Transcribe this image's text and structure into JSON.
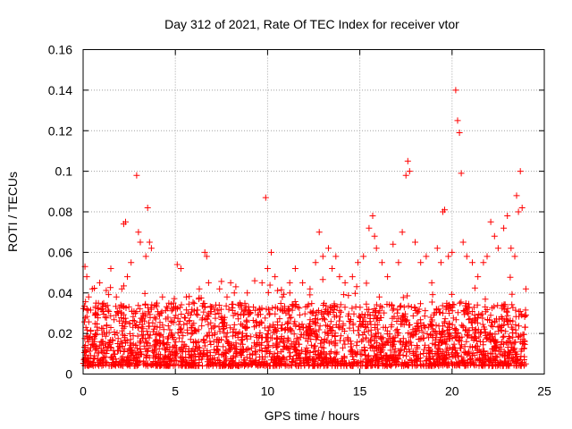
{
  "chart_data": {
    "type": "scatter",
    "title": "Day 312 of 2021, Rate Of TEC Index for receiver vtor",
    "xlabel": "GPS time / hours",
    "ylabel": "ROTI / TECUs",
    "xlim": [
      0,
      25
    ],
    "ylim": [
      0,
      0.16
    ],
    "x_ticks": [
      0,
      5,
      10,
      15,
      20,
      25
    ],
    "x_tick_labels": [
      "0",
      "5",
      "10",
      "15",
      "20",
      "25"
    ],
    "y_ticks": [
      0,
      0.02,
      0.04,
      0.06,
      0.08,
      0.1,
      0.12,
      0.14,
      0.16
    ],
    "y_tick_labels": [
      "0",
      "0.02",
      "0.04",
      "0.06",
      "0.08",
      "0.1",
      "0.12",
      "0.14",
      "0.16"
    ],
    "grid": true,
    "marker": "+",
    "color": "#ff0000",
    "series": [
      {
        "name": "ROTI",
        "x": [
          0.1,
          0.2,
          0.3,
          0.5,
          0.7,
          0.9,
          1.2,
          1.5,
          1.8,
          2.1,
          2.2,
          2.3,
          2.4,
          2.6,
          2.9,
          3.0,
          3.1,
          3.4,
          3.5,
          3.6,
          3.7,
          4.0,
          4.3,
          4.6,
          4.9,
          5.1,
          5.3,
          5.6,
          6.0,
          6.3,
          6.6,
          6.7,
          6.8,
          7.1,
          7.4,
          7.8,
          8.0,
          8.2,
          8.5,
          8.9,
          9.3,
          9.7,
          9.9,
          10.0,
          10.2,
          10.4,
          10.8,
          11.2,
          11.5,
          11.9,
          12.3,
          12.6,
          12.8,
          13.0,
          13.3,
          13.5,
          13.7,
          13.9,
          14.2,
          14.6,
          14.9,
          15.2,
          15.5,
          15.7,
          15.8,
          15.9,
          16.2,
          16.5,
          16.8,
          17.1,
          17.3,
          17.5,
          17.6,
          17.7,
          18.0,
          18.3,
          18.6,
          18.9,
          19.2,
          19.4,
          19.5,
          19.6,
          19.8,
          20.0,
          20.2,
          20.3,
          20.4,
          20.5,
          20.6,
          20.8,
          21.1,
          21.4,
          21.7,
          21.9,
          22.1,
          22.3,
          22.5,
          22.8,
          23.0,
          23.2,
          23.4,
          23.5,
          23.6,
          23.7,
          23.8,
          24.0
        ],
        "y": [
          0.053,
          0.048,
          0.038,
          0.042,
          0.035,
          0.045,
          0.028,
          0.052,
          0.038,
          0.042,
          0.074,
          0.075,
          0.048,
          0.055,
          0.098,
          0.07,
          0.065,
          0.058,
          0.082,
          0.065,
          0.062,
          0.035,
          0.038,
          0.028,
          0.035,
          0.054,
          0.052,
          0.038,
          0.025,
          0.042,
          0.06,
          0.058,
          0.045,
          0.032,
          0.042,
          0.038,
          0.045,
          0.04,
          0.035,
          0.04,
          0.046,
          0.045,
          0.087,
          0.052,
          0.06,
          0.048,
          0.038,
          0.045,
          0.052,
          0.045,
          0.042,
          0.055,
          0.07,
          0.058,
          0.062,
          0.052,
          0.058,
          0.048,
          0.045,
          0.048,
          0.055,
          0.058,
          0.072,
          0.078,
          0.068,
          0.062,
          0.055,
          0.048,
          0.064,
          0.055,
          0.07,
          0.098,
          0.105,
          0.1,
          0.065,
          0.055,
          0.058,
          0.045,
          0.062,
          0.055,
          0.08,
          0.081,
          0.058,
          0.06,
          0.14,
          0.125,
          0.119,
          0.099,
          0.065,
          0.058,
          0.055,
          0.048,
          0.055,
          0.058,
          0.075,
          0.068,
          0.062,
          0.072,
          0.078,
          0.062,
          0.058,
          0.088,
          0.08,
          0.1,
          0.082,
          0.042
        ]
      }
    ],
    "dense_band": {
      "description_hidden": true,
      "x_start": 0,
      "x_end": 24,
      "y_min": 0.004,
      "y_max": 0.035
    }
  }
}
